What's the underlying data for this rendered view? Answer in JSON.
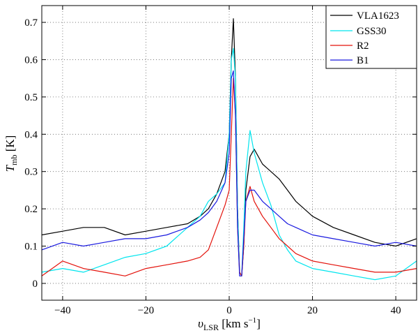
{
  "chart_data": {
    "type": "line",
    "title": "",
    "xlabel_main": "υ",
    "xlabel_sub": "LSR",
    "xlabel_unit": " [km s",
    "xlabel_unit_sup": "−1",
    "xlabel_unit_end": "]",
    "ylabel_main": "T",
    "ylabel_sub": "mb",
    "ylabel_unit": " [K]",
    "xlim": [
      -45,
      45
    ],
    "ylim": [
      -0.045,
      0.745
    ],
    "xticks": [
      -40,
      -20,
      0,
      20,
      40
    ],
    "xtick_labels": [
      "−40",
      "−20",
      "0",
      "20",
      "40"
    ],
    "yticks": [
      0,
      0.1,
      0.2,
      0.3,
      0.4,
      0.5,
      0.6,
      0.7
    ],
    "ytick_labels": [
      "0",
      "0.1",
      "0.2",
      "0.3",
      "0.4",
      "0.5",
      "0.6",
      "0.7"
    ],
    "grid": true,
    "legend_position": "top-right",
    "series": [
      {
        "name": "VLA1623",
        "color": "#000000",
        "x": [
          -45,
          -40,
          -35,
          -30,
          -25,
          -20,
          -15,
          -10,
          -7,
          -5,
          -3,
          -1,
          0,
          0.5,
          1,
          1.5,
          2,
          2.5,
          3,
          3.5,
          4,
          5,
          6,
          8,
          10,
          12,
          14,
          16,
          18,
          20,
          25,
          30,
          35,
          40,
          45
        ],
        "y": [
          0.13,
          0.14,
          0.15,
          0.15,
          0.13,
          0.14,
          0.15,
          0.16,
          0.18,
          0.2,
          0.24,
          0.3,
          0.4,
          0.6,
          0.71,
          0.55,
          0.2,
          0.03,
          0.02,
          0.1,
          0.25,
          0.34,
          0.36,
          0.32,
          0.3,
          0.28,
          0.25,
          0.22,
          0.2,
          0.18,
          0.15,
          0.13,
          0.11,
          0.1,
          0.12
        ]
      },
      {
        "name": "GSS30",
        "color": "#00e5ee",
        "x": [
          -45,
          -40,
          -35,
          -30,
          -25,
          -20,
          -15,
          -10,
          -7,
          -5,
          -3,
          -1,
          0,
          0.5,
          1,
          1.5,
          2,
          2.5,
          3,
          3.5,
          4,
          5,
          6,
          8,
          10,
          12,
          14,
          16,
          18,
          20,
          25,
          30,
          35,
          40,
          45
        ],
        "y": [
          0.03,
          0.04,
          0.03,
          0.05,
          0.07,
          0.08,
          0.1,
          0.15,
          0.18,
          0.22,
          0.24,
          0.27,
          0.4,
          0.6,
          0.63,
          0.55,
          0.2,
          0.03,
          0.02,
          0.15,
          0.3,
          0.41,
          0.35,
          0.27,
          0.21,
          0.13,
          0.09,
          0.06,
          0.05,
          0.04,
          0.03,
          0.02,
          0.01,
          0.02,
          0.06
        ]
      },
      {
        "name": "R2",
        "color": "#e3120b",
        "x": [
          -45,
          -40,
          -35,
          -30,
          -25,
          -20,
          -15,
          -10,
          -7,
          -5,
          -3,
          -1,
          0,
          0.5,
          1,
          1.5,
          2,
          2.5,
          3,
          3.5,
          4,
          5,
          6,
          8,
          10,
          12,
          14,
          16,
          18,
          20,
          25,
          30,
          35,
          40,
          45
        ],
        "y": [
          0.02,
          0.06,
          0.04,
          0.03,
          0.02,
          0.04,
          0.05,
          0.06,
          0.07,
          0.09,
          0.15,
          0.21,
          0.25,
          0.4,
          0.55,
          0.45,
          0.15,
          0.03,
          0.02,
          0.1,
          0.22,
          0.26,
          0.22,
          0.18,
          0.15,
          0.12,
          0.1,
          0.08,
          0.07,
          0.06,
          0.05,
          0.04,
          0.03,
          0.03,
          0.04
        ]
      },
      {
        "name": "B1",
        "color": "#1a1adf",
        "x": [
          -45,
          -40,
          -35,
          -30,
          -25,
          -20,
          -15,
          -10,
          -7,
          -5,
          -3,
          -1,
          0,
          0.5,
          1,
          1.5,
          2,
          2.5,
          3,
          3.5,
          4,
          5,
          6,
          8,
          10,
          12,
          14,
          16,
          18,
          20,
          25,
          30,
          35,
          40,
          45
        ],
        "y": [
          0.09,
          0.11,
          0.1,
          0.11,
          0.12,
          0.12,
          0.13,
          0.15,
          0.17,
          0.19,
          0.22,
          0.27,
          0.35,
          0.55,
          0.57,
          0.45,
          0.15,
          0.02,
          0.02,
          0.12,
          0.22,
          0.25,
          0.25,
          0.22,
          0.2,
          0.18,
          0.16,
          0.15,
          0.14,
          0.13,
          0.12,
          0.11,
          0.1,
          0.11,
          0.1
        ]
      }
    ]
  }
}
